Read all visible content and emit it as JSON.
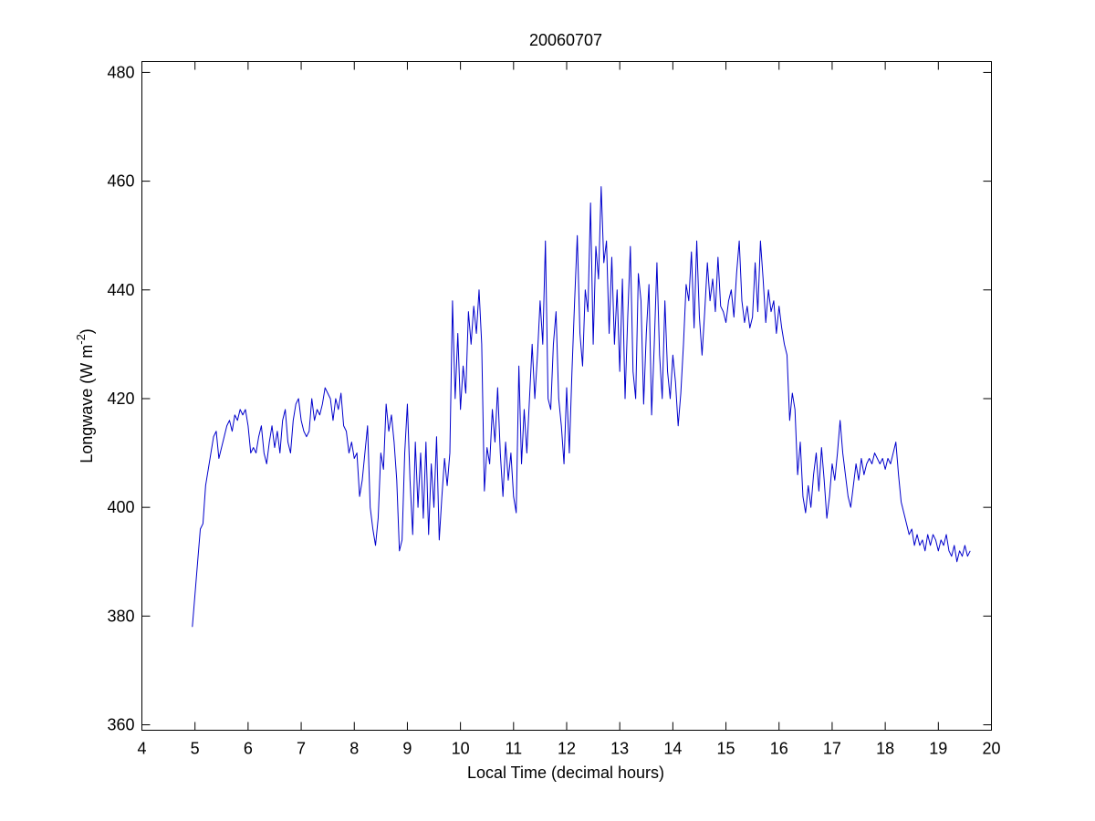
{
  "chart_data": {
    "type": "line",
    "title": "20060707",
    "xlabel": "Local Time (decimal hours)",
    "ylabel": {
      "text": "Longwave (W m",
      "superscript": "-2",
      "suffix": ")"
    },
    "color": "#0000cc",
    "xlim": [
      4,
      20
    ],
    "xticks": [
      4,
      5,
      6,
      7,
      8,
      9,
      10,
      11,
      12,
      13,
      14,
      15,
      16,
      17,
      18,
      19,
      20
    ],
    "ylim": [
      359,
      482
    ],
    "yticks": [
      360,
      380,
      400,
      420,
      440,
      460,
      480
    ],
    "grid": false,
    "x": [
      4.95,
      5.0,
      5.05,
      5.1,
      5.15,
      5.2,
      5.25,
      5.3,
      5.35,
      5.4,
      5.45,
      5.5,
      5.55,
      5.6,
      5.65,
      5.7,
      5.75,
      5.8,
      5.85,
      5.9,
      5.95,
      6.0,
      6.05,
      6.1,
      6.15,
      6.2,
      6.25,
      6.3,
      6.35,
      6.4,
      6.45,
      6.5,
      6.55,
      6.6,
      6.65,
      6.7,
      6.75,
      6.8,
      6.85,
      6.9,
      6.95,
      7.0,
      7.05,
      7.1,
      7.15,
      7.2,
      7.25,
      7.3,
      7.35,
      7.4,
      7.45,
      7.5,
      7.55,
      7.6,
      7.65,
      7.7,
      7.75,
      7.8,
      7.85,
      7.9,
      7.95,
      8.0,
      8.05,
      8.1,
      8.15,
      8.2,
      8.25,
      8.3,
      8.35,
      8.4,
      8.45,
      8.5,
      8.55,
      8.6,
      8.65,
      8.7,
      8.75,
      8.8,
      8.85,
      8.9,
      8.95,
      9.0,
      9.05,
      9.1,
      9.15,
      9.2,
      9.25,
      9.3,
      9.35,
      9.4,
      9.45,
      9.5,
      9.55,
      9.6,
      9.65,
      9.7,
      9.75,
      9.8,
      9.85,
      9.9,
      9.95,
      10.0,
      10.05,
      10.1,
      10.15,
      10.2,
      10.25,
      10.3,
      10.35,
      10.4,
      10.45,
      10.5,
      10.55,
      10.6,
      10.65,
      10.7,
      10.75,
      10.8,
      10.85,
      10.9,
      10.95,
      11.0,
      11.05,
      11.1,
      11.15,
      11.2,
      11.25,
      11.3,
      11.35,
      11.4,
      11.45,
      11.5,
      11.55,
      11.6,
      11.65,
      11.7,
      11.75,
      11.8,
      11.85,
      11.9,
      11.95,
      12.0,
      12.05,
      12.1,
      12.15,
      12.2,
      12.25,
      12.3,
      12.35,
      12.4,
      12.45,
      12.5,
      12.55,
      12.6,
      12.65,
      12.7,
      12.75,
      12.8,
      12.85,
      12.9,
      12.95,
      13.0,
      13.05,
      13.1,
      13.15,
      13.2,
      13.25,
      13.3,
      13.35,
      13.4,
      13.45,
      13.5,
      13.55,
      13.6,
      13.65,
      13.7,
      13.75,
      13.8,
      13.85,
      13.9,
      13.95,
      14.0,
      14.05,
      14.1,
      14.15,
      14.2,
      14.25,
      14.3,
      14.35,
      14.4,
      14.45,
      14.5,
      14.55,
      14.6,
      14.65,
      14.7,
      14.75,
      14.8,
      14.85,
      14.9,
      14.95,
      15.0,
      15.05,
      15.1,
      15.15,
      15.2,
      15.25,
      15.3,
      15.35,
      15.4,
      15.45,
      15.5,
      15.55,
      15.6,
      15.65,
      15.7,
      15.75,
      15.8,
      15.85,
      15.9,
      15.95,
      16.0,
      16.05,
      16.1,
      16.15,
      16.2,
      16.25,
      16.3,
      16.35,
      16.4,
      16.45,
      16.5,
      16.55,
      16.6,
      16.65,
      16.7,
      16.75,
      16.8,
      16.85,
      16.9,
      16.95,
      17.0,
      17.05,
      17.1,
      17.15,
      17.2,
      17.25,
      17.3,
      17.35,
      17.4,
      17.45,
      17.5,
      17.55,
      17.6,
      17.65,
      17.7,
      17.75,
      17.8,
      17.85,
      17.9,
      17.95,
      18.0,
      18.05,
      18.1,
      18.15,
      18.2,
      18.25,
      18.3,
      18.35,
      18.4,
      18.45,
      18.5,
      18.55,
      18.6,
      18.65,
      18.7,
      18.75,
      18.8,
      18.85,
      18.9,
      18.95,
      19.0,
      19.05,
      19.1,
      19.15,
      19.2,
      19.25,
      19.3,
      19.35,
      19.4,
      19.45,
      19.5,
      19.55,
      19.6
    ],
    "values": [
      378,
      384,
      390,
      396,
      397,
      404,
      407,
      410,
      413,
      414,
      409,
      411,
      413,
      415,
      416,
      414,
      417,
      416,
      418,
      417,
      418,
      415,
      410,
      411,
      410,
      413,
      415,
      410,
      408,
      412,
      415,
      411,
      414,
      410,
      416,
      418,
      412,
      410,
      416,
      419,
      420,
      416,
      414,
      413,
      414,
      420,
      416,
      418,
      417,
      419,
      422,
      421,
      420,
      416,
      420,
      418,
      421,
      415,
      414,
      410,
      412,
      409,
      410,
      402,
      405,
      410,
      415,
      400,
      396,
      393,
      398,
      410,
      407,
      419,
      414,
      417,
      412,
      405,
      392,
      394,
      410,
      419,
      405,
      395,
      412,
      400,
      410,
      398,
      412,
      395,
      408,
      400,
      413,
      394,
      402,
      409,
      404,
      410,
      438,
      420,
      432,
      418,
      426,
      421,
      436,
      430,
      437,
      432,
      440,
      430,
      403,
      411,
      408,
      418,
      412,
      422,
      410,
      402,
      412,
      405,
      410,
      402,
      399,
      426,
      408,
      418,
      410,
      420,
      430,
      420,
      428,
      438,
      430,
      449,
      420,
      418,
      430,
      436,
      420,
      415,
      408,
      422,
      410,
      425,
      438,
      450,
      432,
      426,
      440,
      436,
      456,
      430,
      448,
      442,
      459,
      445,
      449,
      432,
      446,
      430,
      440,
      425,
      442,
      420,
      435,
      448,
      425,
      420,
      443,
      438,
      419,
      432,
      441,
      417,
      430,
      445,
      428,
      420,
      438,
      425,
      420,
      428,
      423,
      415,
      421,
      430,
      441,
      438,
      447,
      433,
      449,
      435,
      428,
      436,
      445,
      438,
      442,
      436,
      446,
      437,
      436,
      434,
      438,
      440,
      435,
      443,
      449,
      438,
      434,
      437,
      433,
      435,
      445,
      436,
      449,
      442,
      434,
      440,
      436,
      438,
      432,
      437,
      433,
      430,
      428,
      416,
      421,
      418,
      406,
      412,
      402,
      399,
      404,
      400,
      406,
      410,
      403,
      411,
      405,
      398,
      402,
      408,
      405,
      410,
      416,
      410,
      406,
      402,
      400,
      404,
      408,
      405,
      409,
      406,
      408,
      409,
      408,
      410,
      409,
      408,
      409,
      407,
      409,
      408,
      410,
      412,
      406,
      401,
      399,
      397,
      395,
      396,
      393,
      395,
      393,
      394,
      392,
      395,
      393,
      395,
      394,
      392,
      394,
      393,
      395,
      392,
      391,
      393,
      390,
      392,
      391,
      393,
      391,
      392
    ]
  }
}
